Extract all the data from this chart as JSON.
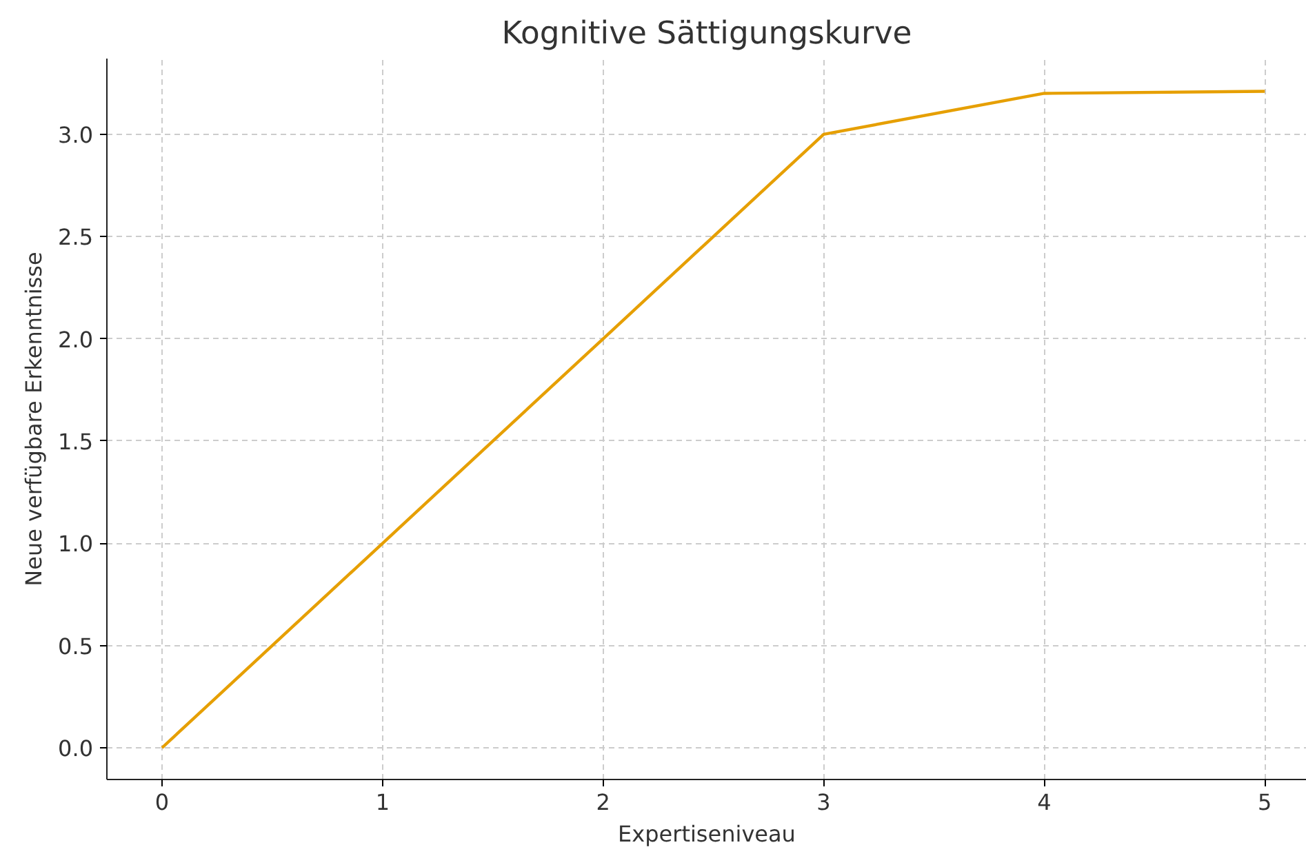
{
  "chart_data": {
    "type": "line",
    "title": "Kognitive Sättigungskurve",
    "xlabel": "Expertiseniveau",
    "ylabel": "Neue verfügbare Erkenntnisse",
    "x": [
      0,
      1,
      2,
      3,
      4,
      5
    ],
    "series": [
      {
        "color": "#e69f00",
        "values": [
          0,
          1,
          2,
          3,
          3.2,
          3.21
        ]
      }
    ],
    "xlim": [
      -0.25,
      5.19
    ],
    "ylim": [
      -0.155,
      3.37
    ],
    "xticks": [
      0,
      1,
      2,
      3,
      4,
      5
    ],
    "yticks": [
      {
        "value": 0,
        "label": "0.0"
      },
      {
        "value": 0.5,
        "label": "0.5"
      },
      {
        "value": 1,
        "label": "1.0"
      },
      {
        "value": 1.5,
        "label": "1.5"
      },
      {
        "value": 2,
        "label": "2.0"
      },
      {
        "value": 2.5,
        "label": "2.5"
      },
      {
        "value": 3,
        "label": "3.0"
      }
    ],
    "grid": true,
    "marker": "none",
    "line_style": "solid"
  }
}
